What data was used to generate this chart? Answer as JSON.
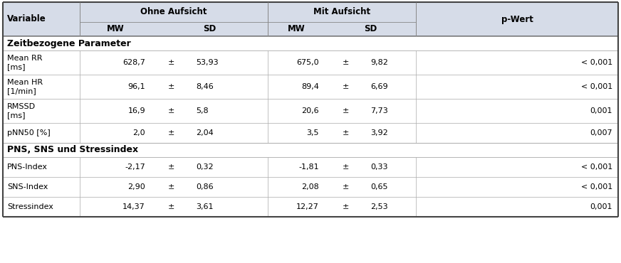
{
  "col_boundaries": [
    0,
    100,
    205,
    265,
    370,
    455,
    510,
    575,
    660
  ],
  "header_bg": "#d6dce8",
  "white_bg": "#ffffff",
  "row_alt_bg": "#ffffff",
  "border_thin": "#aaaaaa",
  "border_thick": "#444444",
  "font_size": 8.0,
  "header_font_size": 8.5,
  "section1_label": "Zeitbezogene Parameter",
  "section2_label": "PNS, SNS und Stressindex",
  "rows": [
    [
      "Mean RR\n[ms]",
      "628,7",
      "±",
      "53,93",
      "675,0",
      "±",
      "9,82",
      "< 0,001"
    ],
    [
      "Mean HR\n[1/min]",
      "96,1",
      "±",
      "8,46",
      "89,4",
      "±",
      "6,69",
      "< 0,001"
    ],
    [
      "RMSSD\n[ms]",
      "16,9",
      "±",
      "5,8",
      "20,6",
      "±",
      "7,73",
      "0,001"
    ],
    [
      "pNN50 [%]",
      "2,0",
      "±",
      "2,04",
      "3,5",
      "±",
      "3,92",
      "0,007"
    ]
  ],
  "rows2": [
    [
      "PNS-Index",
      "-2,17",
      "±",
      "0,32",
      "-1,81",
      "±",
      "0,33",
      "< 0,001"
    ],
    [
      "SNS-Index",
      "2,90",
      "±",
      "0,86",
      "2,08",
      "±",
      "0,65",
      "< 0,001"
    ],
    [
      "Stressindex",
      "14,37",
      "±",
      "3,61",
      "12,27",
      "±",
      "2,53",
      "0,001"
    ]
  ]
}
